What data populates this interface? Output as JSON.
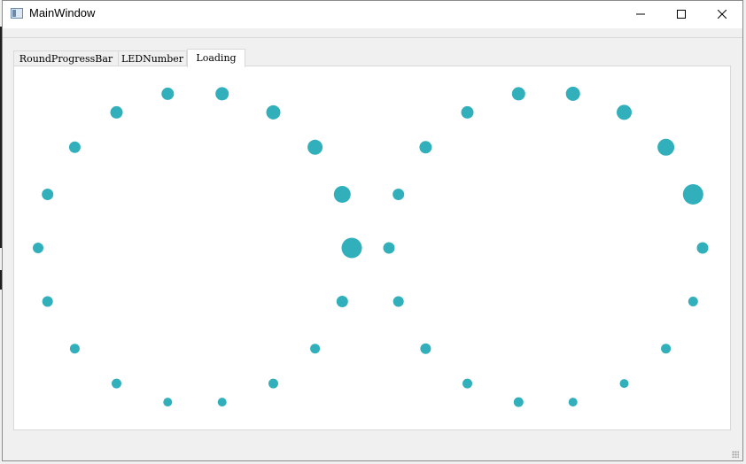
{
  "window": {
    "title": "MainWindow"
  },
  "tabs": [
    {
      "label": "RoundProgressBar",
      "active": false
    },
    {
      "label": "LEDNumber",
      "active": false
    },
    {
      "label": "Loading",
      "active": true
    }
  ],
  "loading": {
    "dot_color": "#31b0bc",
    "spinners": 2,
    "dots_per_spinner": 18,
    "dot_size_levels": [
      18,
      8,
      6,
      6,
      5,
      5,
      6,
      6,
      7,
      7,
      8,
      8,
      9,
      9,
      10,
      11,
      12,
      14
    ]
  }
}
